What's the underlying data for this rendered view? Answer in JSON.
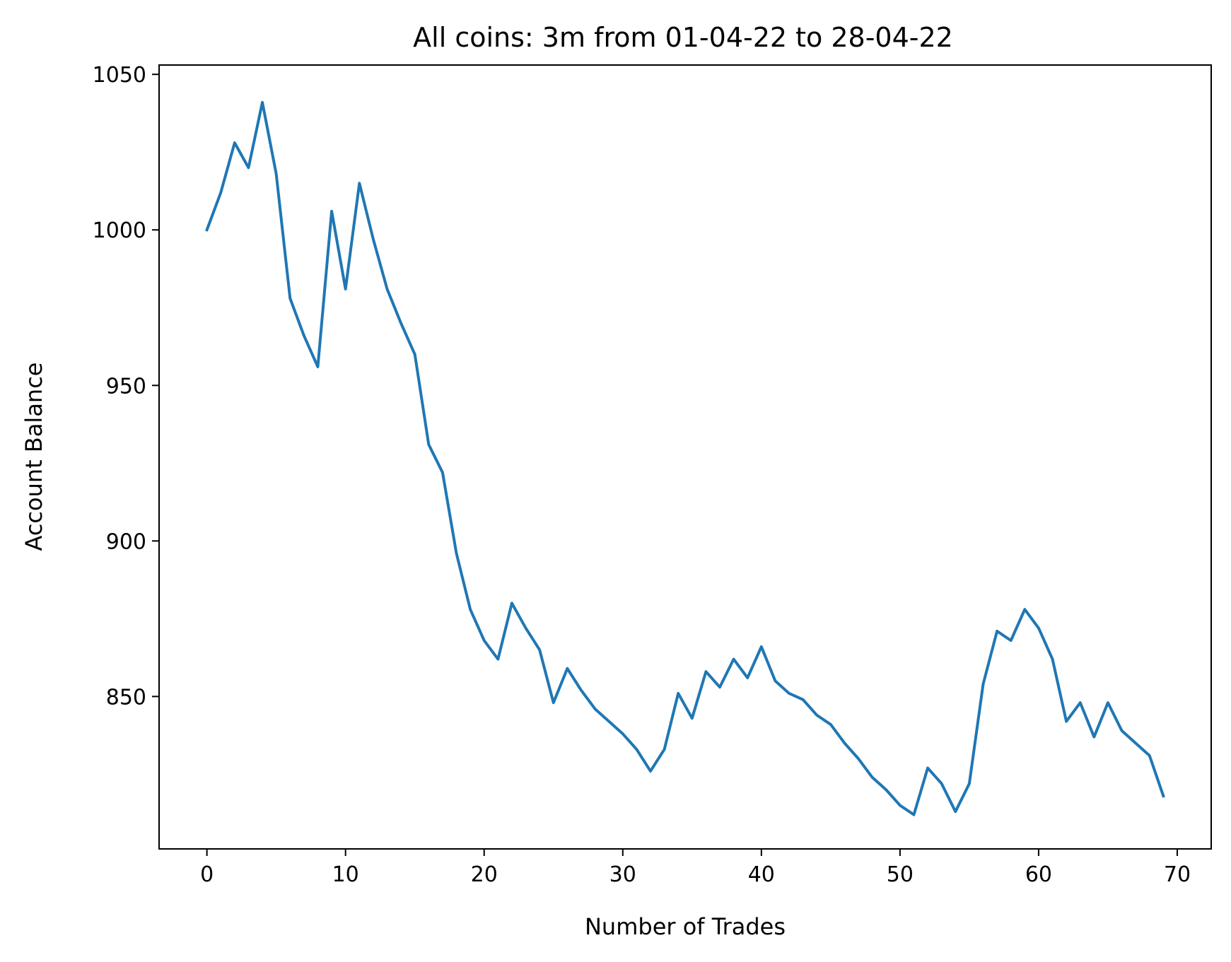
{
  "chart_data": {
    "type": "line",
    "title": "All coins: 3m from 01-04-22 to 28-04-22",
    "xlabel": "Number of Trades",
    "ylabel": "Account Balance",
    "xlim": [
      -3.45,
      72.45
    ],
    "ylim": [
      801,
      1053
    ],
    "xticks": [
      0,
      10,
      20,
      30,
      40,
      50,
      60,
      70
    ],
    "yticks": [
      850,
      900,
      950,
      1000,
      1050
    ],
    "grid": false,
    "line_color": "#1f77b4",
    "series": [
      {
        "x": [
          0,
          1,
          2,
          3,
          4,
          5,
          6,
          7,
          8,
          9,
          10,
          11,
          12,
          13,
          14,
          15,
          16,
          17,
          18,
          19,
          20,
          21,
          22,
          23,
          24,
          25,
          26,
          27,
          28,
          29,
          30,
          31,
          32,
          33,
          34,
          35,
          36,
          37,
          38,
          39,
          40,
          41,
          42,
          43,
          44,
          45,
          46,
          47,
          48,
          49,
          50,
          51,
          52,
          53,
          54,
          55,
          56,
          57,
          58,
          59,
          60,
          61,
          62,
          63,
          64,
          65,
          66,
          67,
          68,
          69
        ],
        "values": [
          1000,
          1012,
          1028,
          1020,
          1041,
          1018,
          978,
          966,
          956,
          1006,
          981,
          1015,
          997,
          981,
          970,
          960,
          931,
          922,
          896,
          878,
          868,
          862,
          880,
          872,
          865,
          848,
          859,
          852,
          846,
          842,
          838,
          833,
          826,
          833,
          851,
          843,
          858,
          853,
          862,
          856,
          866,
          855,
          851,
          849,
          844,
          841,
          835,
          830,
          824,
          820,
          815,
          812,
          827,
          822,
          813,
          822,
          854,
          871,
          868,
          878,
          872,
          862,
          842,
          848,
          837,
          848,
          839,
          835,
          831,
          818
        ]
      }
    ]
  }
}
